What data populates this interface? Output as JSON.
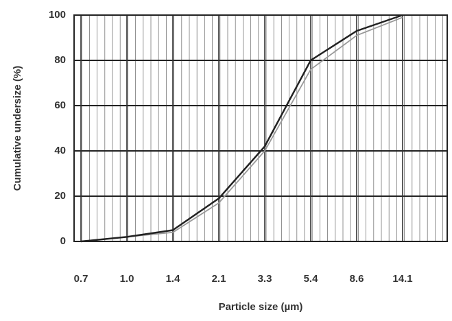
{
  "chart_data": {
    "type": "line",
    "x_label": "Particle size (µm)",
    "y_label": "Cumulative undersize (%)",
    "categories": [
      "0.7",
      "1.0",
      "1.4",
      "2.1",
      "3.3",
      "5.4",
      "8.6",
      "14.1"
    ],
    "series": [
      {
        "color": "#222222",
        "values": [
          0,
          2,
          5,
          19,
          42,
          80,
          93,
          100
        ]
      },
      {
        "color": "#999999",
        "values": [
          0,
          2,
          4,
          17,
          40,
          76,
          91,
          99
        ]
      }
    ],
    "ylim": [
      0,
      100
    ],
    "yticks": [
      0,
      20,
      40,
      60,
      80,
      100
    ],
    "grid": true
  }
}
